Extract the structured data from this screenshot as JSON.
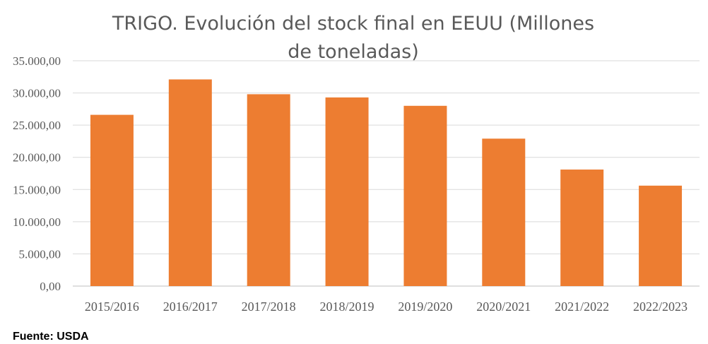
{
  "chart_data": {
    "type": "bar",
    "title": "TRIGO. Evolución del stock final en EEUU (Millones de toneladas)",
    "categories": [
      "2015/2016",
      "2016/2017",
      "2017/2018",
      "2018/2019",
      "2019/2020",
      "2020/2021",
      "2021/2022",
      "2022/2023"
    ],
    "values": [
      26600,
      32100,
      29800,
      29300,
      28000,
      22900,
      18100,
      15600
    ],
    "ylim": [
      0,
      35000
    ],
    "yticks": [
      0,
      5000,
      10000,
      15000,
      20000,
      25000,
      30000,
      35000
    ],
    "ytick_labels": [
      "0,00",
      "5.000,00",
      "10.000,00",
      "15.000,00",
      "20.000,00",
      "25.000,00",
      "30.000,00",
      "35.000,00"
    ],
    "xlabel": "",
    "ylabel": "",
    "grid": true,
    "legend": "none",
    "bar_color": "#ED7D31",
    "grid_color": "#D9D9D9",
    "text_color": "#595959"
  },
  "source": "Fuente: USDA"
}
